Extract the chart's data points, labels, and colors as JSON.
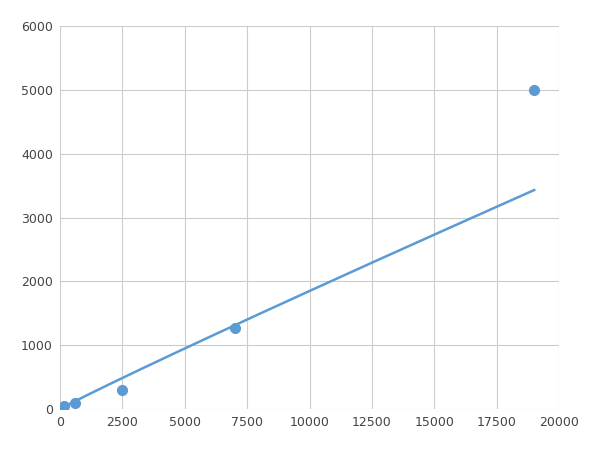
{
  "x_points": [
    156,
    625,
    2500,
    7000,
    19000
  ],
  "y_points": [
    50,
    100,
    300,
    1275,
    5000
  ],
  "line_color": "#5b9bd5",
  "marker_color": "#5b9bd5",
  "marker_size": 7,
  "linewidth": 1.8,
  "xlim": [
    0,
    20000
  ],
  "ylim": [
    0,
    6000
  ],
  "xticks": [
    0,
    2500,
    5000,
    7500,
    10000,
    12500,
    15000,
    17500,
    20000
  ],
  "yticks": [
    0,
    1000,
    2000,
    3000,
    4000,
    5000,
    6000
  ],
  "background_color": "#ffffff",
  "grid_color": "#cccccc",
  "figsize": [
    6.0,
    4.5
  ],
  "dpi": 100
}
